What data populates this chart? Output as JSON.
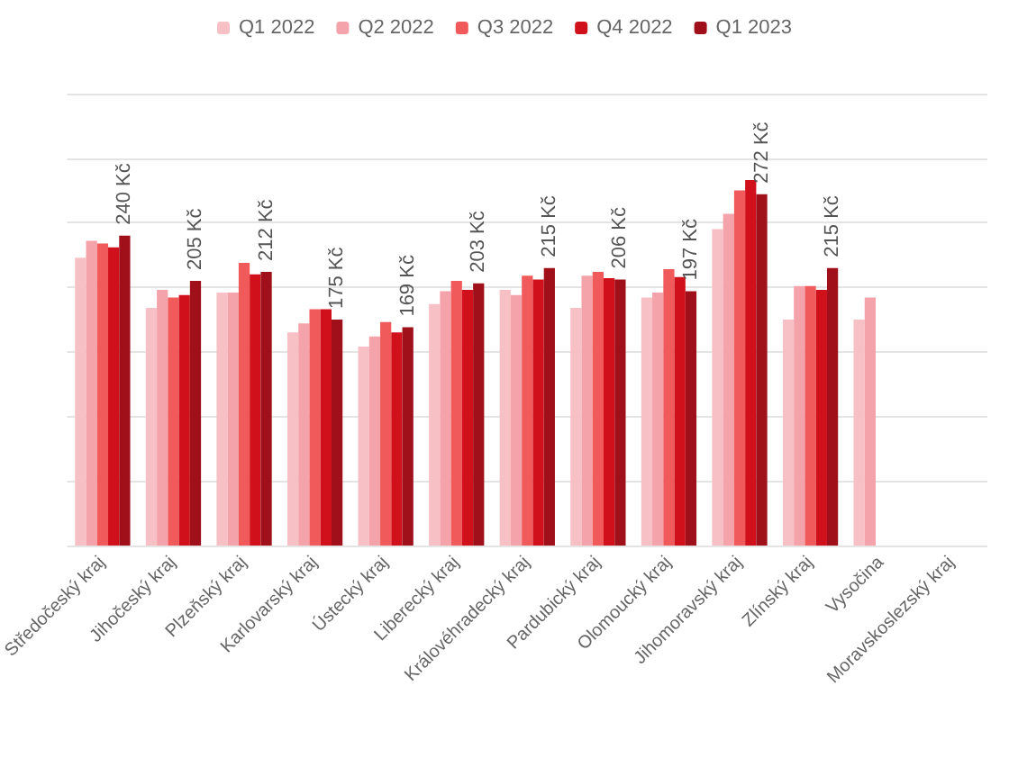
{
  "chart_data": {
    "type": "bar",
    "categories": [
      "Středočeský kraj",
      "Jihočeský kraj",
      "Plzeňský kraj",
      "Karlovarský kraj",
      "Ústecký kraj",
      "Liberecký kraj",
      "Královéhradecký kraj",
      "Pardubický kraj",
      "Olomoucký kraj",
      "Jihomoravský kraj",
      "Zlínský kraj",
      "Vysočina",
      "Moravskoslezský kraj"
    ],
    "series": [
      {
        "name": "Q1 2022",
        "color": "#f7c0c5",
        "values": [
          223,
          184,
          196,
          165,
          154,
          187,
          198,
          184,
          192,
          245,
          175,
          175,
          null
        ]
      },
      {
        "name": "Q2 2022",
        "color": "#f4a3aa",
        "values": [
          236,
          198,
          196,
          172,
          162,
          197,
          194,
          209,
          196,
          257,
          201,
          192,
          null
        ]
      },
      {
        "name": "Q3 2022",
        "color": "#f05a5a",
        "values": [
          234,
          192,
          219,
          183,
          173,
          205,
          209,
          212,
          214,
          275,
          201,
          null,
          null
        ]
      },
      {
        "name": "Q4 2022",
        "color": "#d0101a",
        "values": [
          231,
          194,
          210,
          183,
          165,
          198,
          206,
          207,
          208,
          283,
          198,
          null,
          null
        ]
      },
      {
        "name": "Q1 2023",
        "color": "#a0101a",
        "values": [
          240,
          205,
          212,
          175,
          169,
          203,
          215,
          206,
          197,
          272,
          215,
          null,
          null
        ],
        "value_labels": [
          "240 Kč",
          "205 Kč",
          "212 Kč",
          "175 Kč",
          "169 Kč",
          "203 Kč",
          "215 Kč",
          "206 Kč",
          "197 Kč",
          "272 Kč",
          "215 Kč",
          null,
          null
        ]
      }
    ],
    "ylim": [
      0,
      350
    ],
    "yticks": [
      {
        "value": 0,
        "label": null
      },
      {
        "value": 50,
        "label": null
      },
      {
        "value": 100,
        "label": null
      },
      {
        "value": 150,
        "label": null
      },
      {
        "value": 200,
        "label": null
      },
      {
        "value": 250,
        "label": null
      },
      {
        "value": 300,
        "label": null
      },
      {
        "value": 350,
        "label": null
      }
    ],
    "grid": "y",
    "legend": "top",
    "tick_labels": "x"
  }
}
